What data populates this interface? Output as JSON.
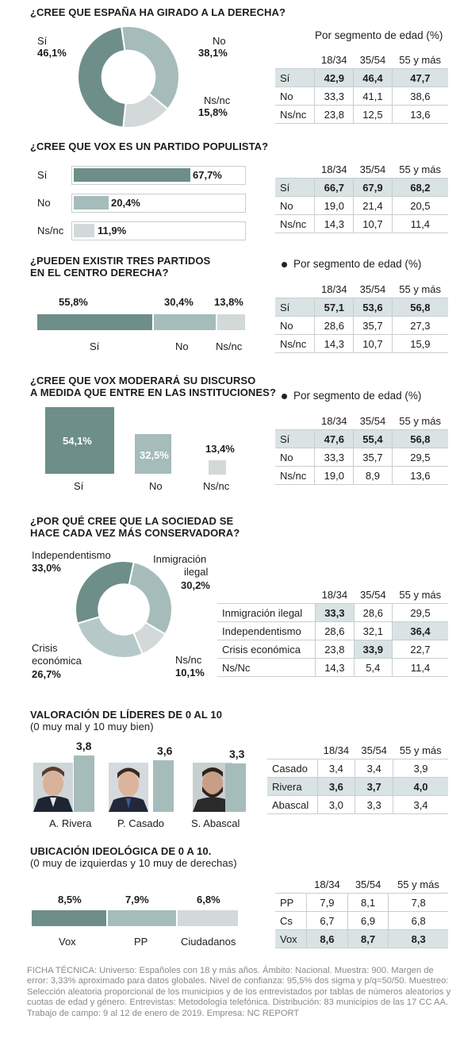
{
  "colors": {
    "dark": "#6e8e8a",
    "mid": "#a5bcbb",
    "light": "#d3d8d8",
    "highlight": "#d9e3e3"
  },
  "sections": {
    "q1": {
      "title": "¿CREE QUE ESPAÑA HA GIRADO A LA DERECHA?",
      "segment_title": "Por segmento de edad (%)",
      "labels": {
        "si": "Sí",
        "no": "No",
        "nsnc": "Ns/nc"
      },
      "values_text": {
        "si": "46,1%",
        "no": "38,1%",
        "nsnc": "15,8%"
      }
    },
    "q2": {
      "title": "¿CREE QUE VOX ES UN PARTIDO POPULISTA?",
      "labels": {
        "si": "Sí",
        "no": "No",
        "nsnc": "Ns/nc"
      },
      "values_text": {
        "si": "67,7%",
        "no": "20,4%",
        "nsnc": "11,9%"
      }
    },
    "q3": {
      "title_line1": "¿PUEDEN EXISTIR TRES PARTIDOS",
      "title_line2": "EN EL CENTRO DERECHA?",
      "segment_title": "Por segmento de edad (%)",
      "labels": {
        "si": "Sí",
        "no": "No",
        "nsnc": "Ns/nc"
      },
      "values_text": {
        "si": "55,8%",
        "no": "30,4%",
        "nsnc": "13,8%"
      }
    },
    "q4": {
      "title_line1": "¿CREE QUE VOX MODERARÁ SU DISCURSO",
      "title_line2": "A MEDIDA QUE ENTRE EN LAS INSTITUCIONES?",
      "segment_title": "Por segmento de edad (%)",
      "labels": {
        "si": "Sí",
        "no": "No",
        "nsnc": "Ns/nc"
      },
      "values_text": {
        "si": "54,1%",
        "no": "32,5%",
        "nsnc": "13,4%"
      }
    },
    "q5": {
      "title_line1": "¿POR QUÉ CREE QUE LA SOCIEDAD SE",
      "title_line2": "HACE CADA VEZ MÁS CONSERVADORA?",
      "labels": {
        "indep": "Independentismo",
        "inmig1": "Inmigración",
        "inmig2": "ilegal",
        "crisis1": "Crisis",
        "crisis2": "económica",
        "nsnc": "Ns/nc"
      },
      "values_text": {
        "indep": "33,0%",
        "inmig": "30,2%",
        "crisis": "26,7%",
        "nsnc": "10,1%"
      }
    },
    "q6": {
      "title": "VALORACIÓN DE LÍDERES DE 0 AL 10",
      "subtitle": "(0 muy mal y 10 muy bien)",
      "names": {
        "rivera": "A. Rivera",
        "casado": "P. Casado",
        "abascal": "S. Abascal"
      },
      "values_text": {
        "rivera": "3,8",
        "casado": "3,6",
        "abascal": "3,3"
      }
    },
    "q7": {
      "title": "UBICACIÓN IDEOLÓGICA DE 0 A 10.",
      "subtitle": "(0 muy de izquierdas y 10 muy de derechas)",
      "labels": {
        "vox": "Vox",
        "pp": "PP",
        "cs": "Ciudadanos"
      },
      "values_text": {
        "vox": "8,5%",
        "pp": "7,9%",
        "cs": "6,8%"
      }
    }
  },
  "tables": {
    "headers": [
      "18/34",
      "35/54",
      "55 y más"
    ],
    "t1": [
      {
        "label": "Sí",
        "v": [
          "42,9",
          "46,4",
          "47,7"
        ]
      },
      {
        "label": "No",
        "v": [
          "33,3",
          "41,1",
          "38,6"
        ]
      },
      {
        "label": "Ns/nc",
        "v": [
          "23,8",
          "12,5",
          "13,6"
        ]
      }
    ],
    "t2": [
      {
        "label": "Sí",
        "v": [
          "66,7",
          "67,9",
          "68,2"
        ]
      },
      {
        "label": "No",
        "v": [
          "19,0",
          "21,4",
          "20,5"
        ]
      },
      {
        "label": "Ns/nc",
        "v": [
          "14,3",
          "10,7",
          "11,4"
        ]
      }
    ],
    "t3": [
      {
        "label": "Sí",
        "v": [
          "57,1",
          "53,6",
          "56,8"
        ]
      },
      {
        "label": "No",
        "v": [
          "28,6",
          "35,7",
          "27,3"
        ]
      },
      {
        "label": "Ns/nc",
        "v": [
          "14,3",
          "10,7",
          "15,9"
        ]
      }
    ],
    "t4": [
      {
        "label": "Sí",
        "v": [
          "47,6",
          "55,4",
          "56,8"
        ]
      },
      {
        "label": "No",
        "v": [
          "33,3",
          "35,7",
          "29,5"
        ]
      },
      {
        "label": "Ns/nc",
        "v": [
          "19,0",
          "8,9",
          "13,6"
        ]
      }
    ],
    "t5": [
      {
        "label": "Inmigración ilegal",
        "v": [
          "33,3",
          "28,6",
          "29,5"
        ]
      },
      {
        "label": "Independentismo",
        "v": [
          "28,6",
          "32,1",
          "36,4"
        ]
      },
      {
        "label": "Crisis económica",
        "v": [
          "23,8",
          "33,9",
          "22,7"
        ]
      },
      {
        "label": "Ns/Nc",
        "v": [
          "14,3",
          "5,4",
          "11,4"
        ]
      }
    ],
    "t6": [
      {
        "label": "Casado",
        "v": [
          "3,4",
          "3,4",
          "3,9"
        ]
      },
      {
        "label": "Rivera",
        "v": [
          "3,6",
          "3,7",
          "4,0"
        ]
      },
      {
        "label": "Abascal",
        "v": [
          "3,0",
          "3,3",
          "3,4"
        ]
      }
    ],
    "t7": [
      {
        "label": "PP",
        "v": [
          "7,9",
          "8,1",
          "7,8"
        ]
      },
      {
        "label": "Cs",
        "v": [
          "6,7",
          "6,9",
          "6,8"
        ]
      },
      {
        "label": "Vox",
        "v": [
          "8,6",
          "8,7",
          "8,3"
        ]
      }
    ]
  },
  "footer": "FICHA TÉCNICA: Universo: Españoles con 18 y más años. Ámbito: Nacional. Muestra: 900. Margen de error: 3,33% aproximado para datos globales. Nivel de confianza: 95,5% dos sigma y p/q=50/50. Muestreo: Selección aleatoria proporcional de los municipios y de los entrevistados por tablas de números aleatorios y cuotas de edad y género. Entrevistas: Metodología telefónica. Distribución: 83 municipios de las 17 CC AA. Trabajo de campo: 9 al 12 de enero de 2019. Empresa: NC REPORT",
  "chart_data": [
    {
      "type": "pie",
      "categories": [
        "Sí",
        "No",
        "Ns/nc"
      ],
      "values": [
        46.1,
        38.1,
        15.8
      ]
    },
    {
      "type": "bar",
      "categories": [
        "Sí",
        "No",
        "Ns/nc"
      ],
      "values": [
        67.7,
        20.4,
        11.9
      ]
    },
    {
      "type": "bar",
      "categories": [
        "Sí",
        "No",
        "Ns/nc"
      ],
      "values": [
        55.8,
        30.4,
        13.8
      ]
    },
    {
      "type": "bar",
      "categories": [
        "Sí",
        "No",
        "Ns/nc"
      ],
      "values": [
        54.1,
        32.5,
        13.4
      ]
    },
    {
      "type": "pie",
      "categories": [
        "Independentismo",
        "Inmigración ilegal",
        "Crisis económica",
        "Ns/nc"
      ],
      "values": [
        33.0,
        30.2,
        26.7,
        10.1
      ]
    },
    {
      "type": "bar",
      "categories": [
        "A. Rivera",
        "P. Casado",
        "S. Abascal"
      ],
      "values": [
        3.8,
        3.6,
        3.3
      ],
      "ylim": [
        0,
        10
      ]
    },
    {
      "type": "bar",
      "categories": [
        "Vox",
        "PP",
        "Ciudadanos"
      ],
      "values": [
        8.5,
        7.9,
        6.8
      ],
      "ylim": [
        0,
        10
      ]
    }
  ]
}
